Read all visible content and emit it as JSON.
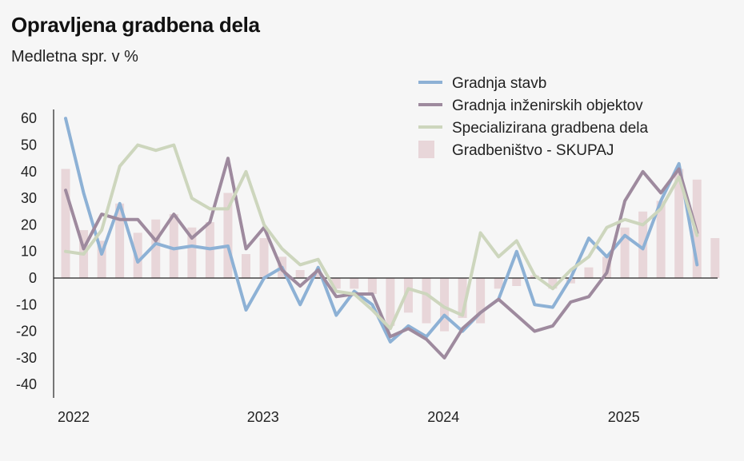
{
  "chart_data": {
    "type": "bar+line",
    "title": "Opravljena gradbena dela",
    "subtitle": "Medletna spr. v %",
    "ylim": [
      -45,
      65
    ],
    "yticks": [
      60,
      50,
      40,
      30,
      20,
      10,
      0,
      -10,
      -20,
      -30,
      -40
    ],
    "xticks": [
      {
        "label": "2022",
        "index": 0
      },
      {
        "label": "2023",
        "index": 10.5
      },
      {
        "label": "2024",
        "index": 20.5
      },
      {
        "label": "2025",
        "index": 30.5
      }
    ],
    "n_points": 37,
    "bars": {
      "name": "Gradbeništvo - SKUPAJ",
      "color": "#e8d6d9",
      "values": [
        41,
        18,
        14,
        28,
        17,
        22,
        24,
        19,
        21,
        32,
        9,
        15,
        8,
        3,
        2,
        -4,
        -4,
        -6,
        -18,
        -13,
        -17,
        -20,
        -15,
        -17,
        -4,
        -3,
        1,
        -4,
        -2,
        4,
        8,
        19,
        25,
        29,
        41,
        37,
        15
      ]
    },
    "series": [
      {
        "name": "Gradnja stavb",
        "color": "#8db1d5",
        "values": [
          60,
          32,
          9,
          28,
          6,
          13,
          11,
          12,
          11,
          12,
          -12,
          0,
          4,
          -10,
          4,
          -14,
          -5,
          -10,
          -24,
          -18,
          -22,
          -14,
          -20,
          -13,
          -8,
          10,
          -10,
          -11,
          0,
          15,
          8,
          16,
          11,
          29,
          43,
          5,
          null
        ]
      },
      {
        "name": "Gradnja inženirskih objektov",
        "color": "#9e8a9e",
        "values": [
          33,
          11,
          24,
          22,
          22,
          14,
          24,
          15,
          21,
          45,
          11,
          19,
          3,
          -3,
          3,
          -7,
          -6,
          -6,
          -22,
          -19,
          -23,
          -30,
          -19,
          -13,
          -8,
          -14,
          -20,
          -18,
          -9,
          -7,
          2,
          29,
          40,
          32,
          41,
          17,
          null
        ]
      },
      {
        "name": "Specializirana gradbena dela",
        "color": "#cdd6bd",
        "values": [
          10,
          9,
          18,
          42,
          50,
          48,
          50,
          30,
          26,
          26,
          40,
          20,
          11,
          5,
          7,
          -5,
          -6,
          -12,
          -19,
          -4,
          -6,
          -11,
          -14,
          17,
          8,
          14,
          1,
          -4,
          3,
          8,
          19,
          22,
          20,
          26,
          38,
          16,
          null
        ]
      }
    ]
  }
}
